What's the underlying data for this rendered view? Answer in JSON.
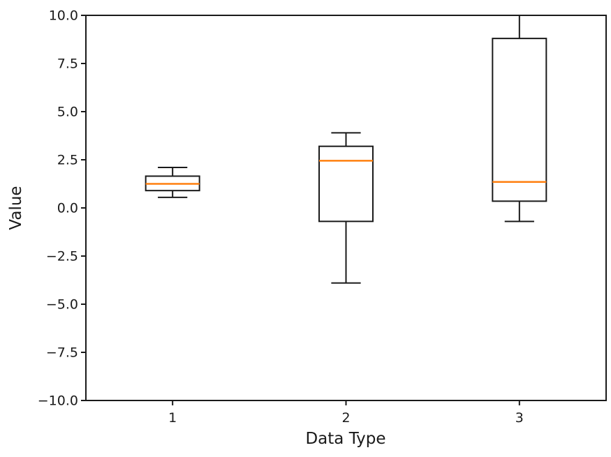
{
  "chart_data": {
    "type": "boxplot",
    "title": "",
    "xlabel": "Data Type",
    "ylabel": "Value",
    "categories": [
      "1",
      "2",
      "3"
    ],
    "x_positions": [
      1,
      2,
      3
    ],
    "xlim": [
      0.5,
      3.5
    ],
    "ylim": [
      -10,
      10
    ],
    "ytick_values": [
      10,
      7.5,
      5,
      2.5,
      0,
      -2.5,
      -5,
      -7.5,
      -10
    ],
    "ytick_labels": [
      "10.0",
      "7.5",
      "5.0",
      "2.5",
      "0.0",
      "−2.5",
      "−5.0",
      "−7.5",
      "−10.0"
    ],
    "grid": false,
    "legend": null,
    "series": [
      {
        "category": "1",
        "whisker_low": 0.55,
        "q1": 0.9,
        "median": 1.25,
        "q3": 1.65,
        "whisker_high": 2.1
      },
      {
        "category": "2",
        "whisker_low": -3.9,
        "q1": -0.7,
        "median": 2.45,
        "q3": 3.2,
        "whisker_high": 3.9
      },
      {
        "category": "3",
        "whisker_low": -0.7,
        "q1": 0.35,
        "median": 1.35,
        "q3": 8.8,
        "whisker_high": 10.0
      }
    ],
    "colors": {
      "box_edge": "#1a1a1a",
      "median": "#ff7f0e",
      "background": "#ffffff"
    },
    "layout": {
      "box_width_units": 0.31,
      "cap_width_units": 0.17,
      "legend_position": "none"
    }
  }
}
